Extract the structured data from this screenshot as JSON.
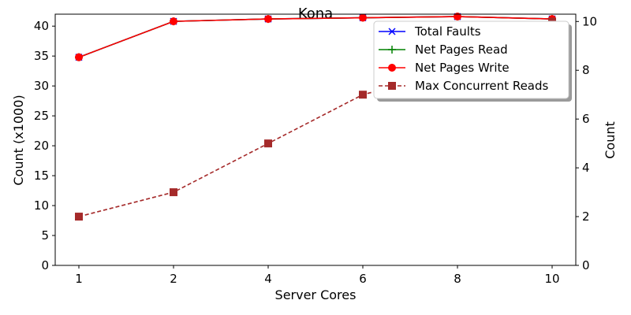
{
  "chart_data": {
    "type": "line",
    "title": "Kona",
    "xlabel": "Server Cores",
    "ylabel": "Count (x1000)",
    "y2label": "Count",
    "categories": [
      "1",
      "2",
      "4",
      "6",
      "8",
      "10"
    ],
    "ylim": [
      0,
      42
    ],
    "y2lim": [
      0,
      10.3
    ],
    "yticks": [
      0,
      5,
      10,
      15,
      20,
      25,
      30,
      35,
      40
    ],
    "y2ticks": [
      0,
      2,
      4,
      6,
      8,
      10
    ],
    "grid": false,
    "legend_position": "top-right",
    "series": [
      {
        "name": "Total Faults",
        "axis": "left",
        "values": [
          34.8,
          40.8,
          41.2,
          41.4,
          41.6,
          41.2
        ],
        "color": "#0000ff",
        "marker": "x",
        "dash": "solid"
      },
      {
        "name": "Net Pages Read",
        "axis": "left",
        "values": [
          34.8,
          40.8,
          41.2,
          41.4,
          41.6,
          41.2
        ],
        "color": "#008000",
        "marker": "+",
        "dash": "solid"
      },
      {
        "name": "Net Pages Write",
        "axis": "left",
        "values": [
          34.8,
          40.8,
          41.2,
          41.4,
          41.6,
          41.2
        ],
        "color": "#ff0000",
        "marker": "o",
        "dash": "solid"
      },
      {
        "name": "Max Concurrent Reads",
        "axis": "right",
        "values": [
          2,
          3,
          5,
          7,
          8,
          10
        ],
        "color": "#a52a2a",
        "marker": "s",
        "dash": "dashed"
      }
    ]
  }
}
